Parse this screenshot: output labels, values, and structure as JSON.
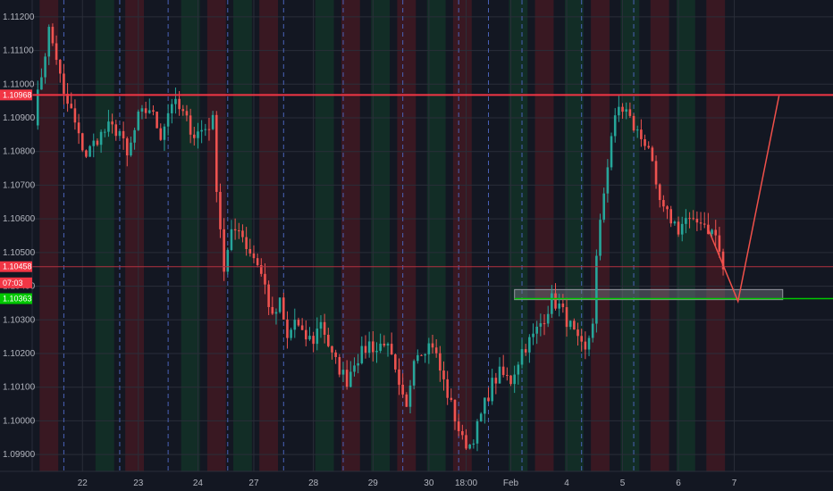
{
  "colors": {
    "background": "#131722",
    "grid": "#2a2e39",
    "up": "#26a69a",
    "down": "#ef5350",
    "session_dash": "#4a62b8",
    "resistance": "#f23645",
    "support": "#00c800",
    "current_price_line": "#b33040",
    "projection": "#f0504a",
    "zone": "#787b86",
    "shade_red": "#5a1a22",
    "shade_green": "#12402a"
  },
  "chart_data": {
    "type": "candlestick",
    "symbol_hint": "EURUSD",
    "ylim": [
      1.0985,
      1.1125
    ],
    "y_ticks": [
      1.112,
      1.111,
      1.11,
      1.109,
      1.108,
      1.107,
      1.106,
      1.105,
      1.104,
      1.103,
      1.102,
      1.101,
      1.1,
      1.099
    ],
    "y_tick_labels": [
      "1.11200",
      "1.11100",
      "1.11000",
      "1.10900",
      "1.10800",
      "1.10700",
      "1.10600",
      "1.10500",
      "1.10400",
      "1.10300",
      "1.10200",
      "1.10100",
      "1.10000",
      "1.09900"
    ],
    "x_axis_labels": [
      "22",
      "23",
      "24",
      "27",
      "28",
      "29",
      "30",
      "18:00",
      "Feb",
      "4",
      "5",
      "6",
      "7"
    ],
    "price_tags": [
      {
        "label": "1.10968",
        "value": 1.10968,
        "color": "#f23645"
      },
      {
        "label": "1.10458",
        "value": 1.10458,
        "color": "#f23645"
      },
      {
        "label": "07:03",
        "value": 1.1041,
        "color": "#f23645"
      },
      {
        "label": "1.10363",
        "value": 1.10363,
        "color": "#00c800"
      }
    ],
    "horizontal_levels": [
      {
        "name": "resistance",
        "value": 1.10968
      },
      {
        "name": "current-price",
        "value": 1.10458
      },
      {
        "name": "support",
        "value": 1.10363
      }
    ],
    "zone": {
      "top": 1.1039,
      "bottom": 1.1036
    },
    "projection": [
      {
        "bar": 181,
        "value": 1.1057
      },
      {
        "bar": 189,
        "value": 1.10355
      },
      {
        "bar": 200,
        "value": 1.10965
      }
    ],
    "anchor_path": [
      [
        0,
        1.109
      ],
      [
        2,
        1.1103
      ],
      [
        4,
        1.1116
      ],
      [
        6,
        1.1108
      ],
      [
        8,
        1.1096
      ],
      [
        10,
        1.1092
      ],
      [
        12,
        1.1084
      ],
      [
        14,
        1.1079
      ],
      [
        17,
        1.1084
      ],
      [
        20,
        1.1087
      ],
      [
        23,
        1.1086
      ],
      [
        25,
        1.1078
      ],
      [
        28,
        1.109
      ],
      [
        31,
        1.1093
      ],
      [
        34,
        1.1085
      ],
      [
        37,
        1.1095
      ],
      [
        40,
        1.1091
      ],
      [
        43,
        1.1085
      ],
      [
        46,
        1.1087
      ],
      [
        48,
        1.1089
      ],
      [
        49,
        1.107
      ],
      [
        51,
        1.1045
      ],
      [
        53,
        1.1055
      ],
      [
        55,
        1.1058
      ],
      [
        57,
        1.1052
      ],
      [
        60,
        1.1047
      ],
      [
        62,
        1.104
      ],
      [
        64,
        1.103
      ],
      [
        66,
        1.1035
      ],
      [
        68,
        1.1024
      ],
      [
        70,
        1.103
      ],
      [
        72,
        1.1025
      ],
      [
        75,
        1.1024
      ],
      [
        77,
        1.103
      ],
      [
        80,
        1.1019
      ],
      [
        84,
        1.1012
      ],
      [
        86,
        1.1018
      ],
      [
        88,
        1.102
      ],
      [
        90,
        1.1023
      ],
      [
        92,
        1.1021
      ],
      [
        94,
        1.1024
      ],
      [
        96,
        1.1018
      ],
      [
        98,
        1.1009
      ],
      [
        100,
        1.1003
      ],
      [
        102,
        1.102
      ],
      [
        105,
        1.1022
      ],
      [
        107,
        1.1023
      ],
      [
        109,
        1.1015
      ],
      [
        111,
        1.1008
      ],
      [
        113,
        1.1001
      ],
      [
        115,
        1.0994
      ],
      [
        117,
        1.0993
      ],
      [
        119,
        1.0998
      ],
      [
        121,
        1.1005
      ],
      [
        123,
        1.1011
      ],
      [
        125,
        1.1014
      ],
      [
        128,
        1.1012
      ],
      [
        131,
        1.1021
      ],
      [
        134,
        1.1025
      ],
      [
        137,
        1.1031
      ],
      [
        139,
        1.1036
      ],
      [
        141,
        1.1034
      ],
      [
        144,
        1.1028
      ],
      [
        146,
        1.1023
      ],
      [
        148,
        1.102
      ],
      [
        150,
        1.103
      ],
      [
        151,
        1.1048
      ],
      [
        153,
        1.1068
      ],
      [
        155,
        1.1085
      ],
      [
        157,
        1.1093
      ],
      [
        159,
        1.1092
      ],
      [
        161,
        1.1087
      ],
      [
        163,
        1.1084
      ],
      [
        165,
        1.1082
      ],
      [
        167,
        1.1068
      ],
      [
        169,
        1.1062
      ],
      [
        171,
        1.106
      ],
      [
        173,
        1.1057
      ],
      [
        175,
        1.106
      ],
      [
        177,
        1.1058
      ],
      [
        179,
        1.106
      ],
      [
        181,
        1.1057
      ],
      [
        183,
        1.1055
      ],
      [
        185,
        1.1045
      ]
    ],
    "last_bar": 185,
    "total_bars": 215
  }
}
